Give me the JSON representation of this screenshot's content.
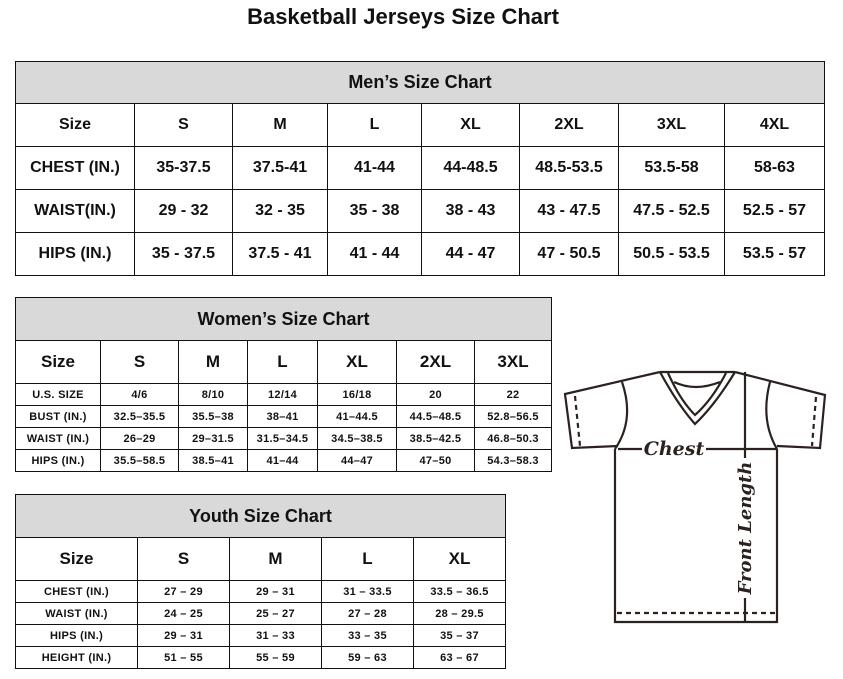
{
  "title": "Basketball Jerseys Size Chart",
  "men": {
    "title": "Men’s Size Chart",
    "header": [
      "Size",
      "S",
      "M",
      "L",
      "XL",
      "2XL",
      "3XL",
      "4XL"
    ],
    "rows": [
      [
        "CHEST (IN.)",
        "35-37.5",
        "37.5-41",
        "41-44",
        "44-48.5",
        "48.5-53.5",
        "53.5-58",
        "58-63"
      ],
      [
        "WAIST(IN.)",
        "29 - 32",
        "32 - 35",
        "35 - 38",
        "38 - 43",
        "43 - 47.5",
        "47.5 - 52.5",
        "52.5 - 57"
      ],
      [
        "HIPS (IN.)",
        "35 - 37.5",
        "37.5 - 41",
        "41 - 44",
        "44 - 47",
        "47 - 50.5",
        "50.5 - 53.5",
        "53.5 - 57"
      ]
    ]
  },
  "women": {
    "title": "Women’s Size Chart",
    "header": [
      "Size",
      "S",
      "M",
      "L",
      "XL",
      "2XL",
      "3XL"
    ],
    "rows": [
      [
        "U.S.  SIZE",
        "4/6",
        "8/10",
        "12/14",
        "16/18",
        "20",
        "22"
      ],
      [
        "BUST  (IN.)",
        "32.5–35.5",
        "35.5–38",
        "38–41",
        "41–44.5",
        "44.5–48.5",
        "52.8–56.5"
      ],
      [
        "WAIST  (IN.)",
        "26–29",
        "29–31.5",
        "31.5–34.5",
        "34.5–38.5",
        "38.5–42.5",
        "46.8–50.3"
      ],
      [
        "HIPS  (IN.)",
        "35.5–58.5",
        "38.5–41",
        "41–44",
        "44–47",
        "47–50",
        "54.3–58.3"
      ]
    ]
  },
  "youth": {
    "title": "Youth Size Chart",
    "header": [
      "Size",
      "S",
      "M",
      "L",
      "XL"
    ],
    "rows": [
      [
        "CHEST  (IN.)",
        "27  –  29",
        "29  –  31",
        "31  –  33.5",
        "33.5  –  36.5"
      ],
      [
        "WAIST  (IN.)",
        "24  –  25",
        "25  –  27",
        "27  –  28",
        "28  –  29.5"
      ],
      [
        "HIPS  (IN.)",
        "29  –  31",
        "31  –  33",
        "33  –  35",
        "35  –  37"
      ],
      [
        "HEIGHT  (IN.)",
        "51  –  55",
        "55  –  59",
        "59  –  63",
        "63  –  67"
      ]
    ]
  },
  "diagram": {
    "chest_label": "Chest",
    "length_label": "Front Length"
  }
}
